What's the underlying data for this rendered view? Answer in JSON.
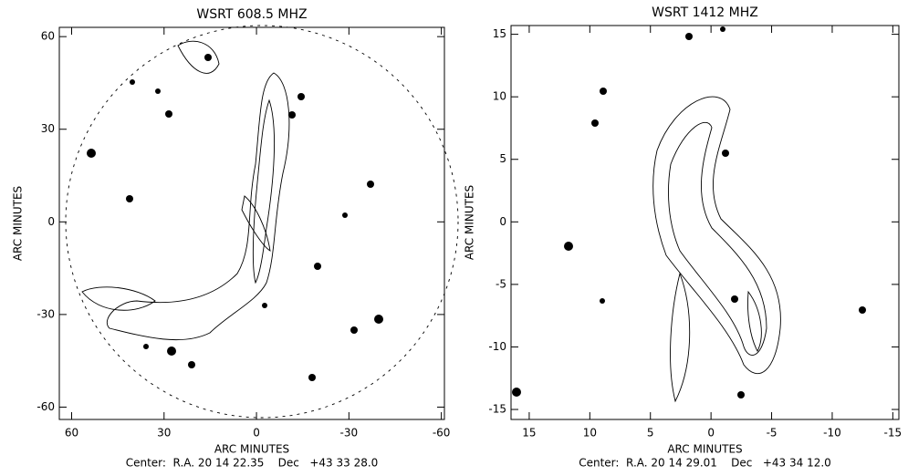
{
  "chart_data": [
    {
      "type": "contour",
      "title": "WSRT 608.5 MHZ",
      "xlabel": "ARC MINUTES",
      "ylabel": "ARC MINUTES",
      "caption": "Center:  R.A. 20 14 22.35    Dec   +43 33 28.0",
      "xlim": [
        64,
        -61
      ],
      "ylim": [
        -64,
        63
      ],
      "xticks": [
        60,
        30,
        0,
        -30,
        -60
      ],
      "yticks": [
        -60,
        -30,
        0,
        30,
        60
      ]
    },
    {
      "type": "contour",
      "title": "WSRT 1412 MHZ",
      "xlabel": "ARC MINUTES",
      "ylabel": "ARC MINUTES",
      "caption": "Center:  R.A. 20 14 29.01    Dec   +43 34 12.0",
      "xlim": [
        16.5,
        -15.5
      ],
      "ylim": [
        -15.8,
        15.7
      ],
      "xticks": [
        15,
        10,
        5,
        0,
        -5,
        -10,
        -15
      ],
      "yticks": [
        -15,
        -10,
        -5,
        0,
        5,
        10,
        15
      ]
    }
  ]
}
